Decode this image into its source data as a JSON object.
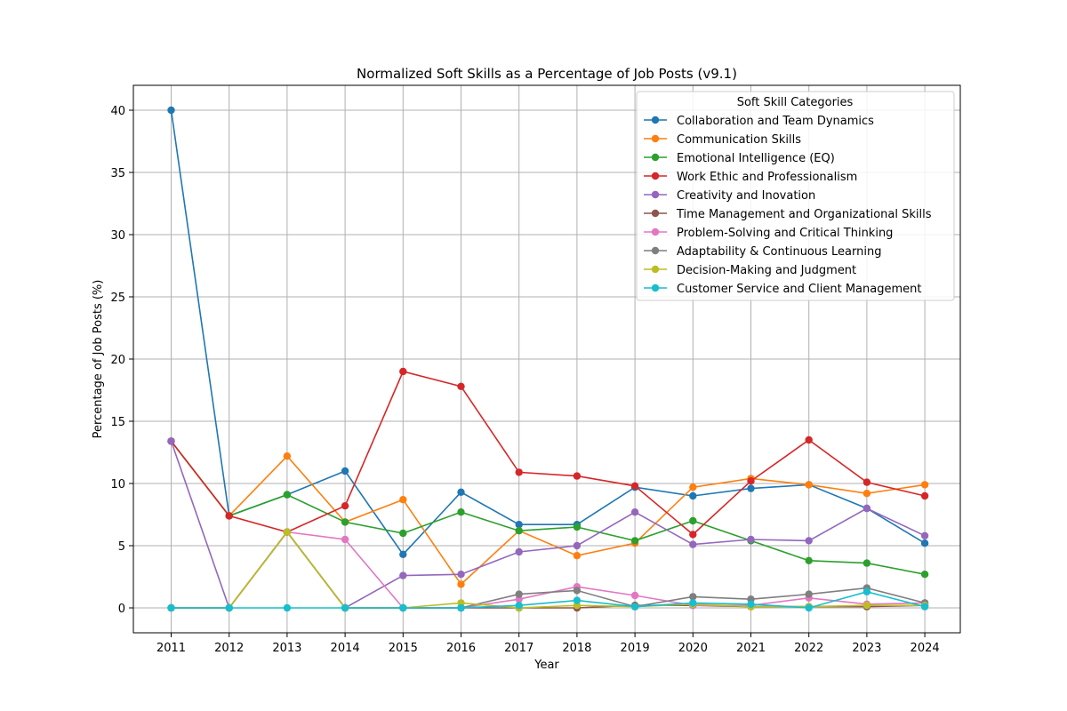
{
  "chart_data": {
    "type": "line",
    "title": "Normalized Soft Skills as a Percentage of Job Posts (v9.1)",
    "xlabel": "Year",
    "ylabel": "Percentage of Job Posts (%)",
    "ylim": [
      -2,
      42
    ],
    "yticks": [
      0,
      5,
      10,
      15,
      20,
      25,
      30,
      35,
      40
    ],
    "grid": true,
    "legend_title": "Soft Skill Categories",
    "legend_position": "top-right",
    "categories": [
      "2011",
      "2012",
      "2013",
      "2014",
      "2015",
      "2016",
      "2017",
      "2018",
      "2019",
      "2020",
      "2021",
      "2022",
      "2023",
      "2024"
    ],
    "series": [
      {
        "name": "Collaboration and Team Dynamics",
        "color": "#1f77b4",
        "values": [
          40,
          7.4,
          9.1,
          11.0,
          4.3,
          9.3,
          6.7,
          6.7,
          9.7,
          9.0,
          9.6,
          9.9,
          8.0,
          5.2
        ]
      },
      {
        "name": "Communication Skills",
        "color": "#ff7f0e",
        "values": [
          13.4,
          7.4,
          12.2,
          6.9,
          8.7,
          1.9,
          6.2,
          4.2,
          5.2,
          9.7,
          10.4,
          9.9,
          9.2,
          9.9
        ]
      },
      {
        "name": "Emotional Intelligence (EQ)",
        "color": "#2ca02c",
        "values": [
          13.4,
          7.4,
          9.1,
          6.9,
          6.0,
          7.7,
          6.2,
          6.5,
          5.4,
          7.0,
          5.4,
          3.8,
          3.6,
          2.7
        ]
      },
      {
        "name": "Work Ethic and Professionalism",
        "color": "#d62728",
        "values": [
          13.4,
          7.4,
          6.1,
          8.2,
          19.0,
          17.8,
          10.9,
          10.6,
          9.8,
          5.9,
          10.2,
          13.5,
          10.1,
          9.0
        ]
      },
      {
        "name": "Creativity and Inovation",
        "color": "#9467bd",
        "values": [
          13.4,
          0,
          6.1,
          0,
          2.6,
          2.7,
          4.5,
          5.0,
          7.7,
          5.1,
          5.5,
          5.4,
          8.0,
          5.8
        ]
      },
      {
        "name": "Time Management and Organizational Skills",
        "color": "#8c564b",
        "values": [
          0,
          0,
          6.1,
          0,
          0,
          0,
          0,
          0,
          0.2,
          0.2,
          0.1,
          0.1,
          0.1,
          0.2
        ]
      },
      {
        "name": "Problem-Solving and Critical Thinking",
        "color": "#e377c2",
        "values": [
          0,
          0,
          6.1,
          5.5,
          0,
          0,
          0.7,
          1.7,
          1.0,
          0.2,
          0.2,
          0.8,
          0.3,
          0.4
        ]
      },
      {
        "name": "Adaptability & Continuous Learning",
        "color": "#7f7f7f",
        "values": [
          0,
          0,
          6.1,
          0,
          0,
          0,
          1.1,
          1.4,
          0.1,
          0.9,
          0.7,
          1.1,
          1.6,
          0.4
        ]
      },
      {
        "name": "Decision-Making and Judgment",
        "color": "#bcbd22",
        "values": [
          0,
          0,
          6.1,
          0,
          0,
          0.4,
          0,
          0.2,
          0.1,
          0.3,
          0.1,
          0.1,
          0.2,
          0.2
        ]
      },
      {
        "name": "Customer Service and Client Management",
        "color": "#17becf",
        "values": [
          0,
          0,
          0,
          0,
          0,
          0,
          0.2,
          0.6,
          0.1,
          0.4,
          0.3,
          0,
          1.3,
          0.1
        ]
      }
    ]
  }
}
